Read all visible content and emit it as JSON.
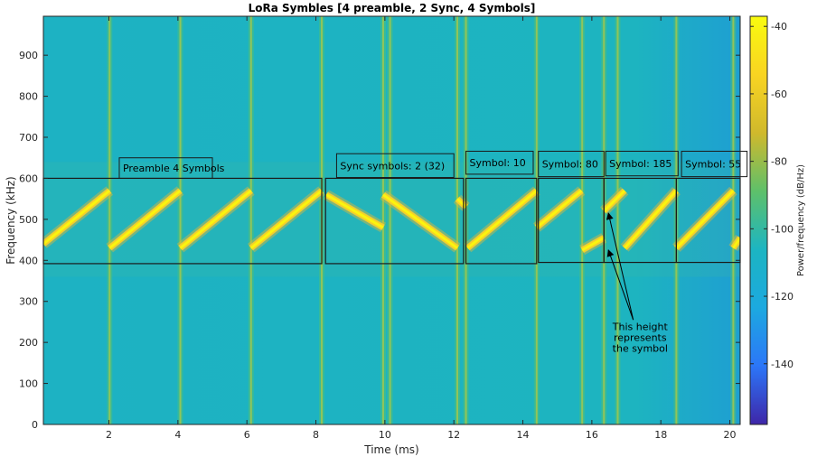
{
  "chart_data": {
    "type": "heatmap",
    "title": "LoRa Symbles [4 preamble, 2 Sync, 4 Symbols]",
    "xlabel": "Time (ms)",
    "ylabel": "Frequency (kHz)",
    "xlim": [
      0.1,
      20.3
    ],
    "ylim": [
      0,
      995
    ],
    "xticks": [
      2,
      4,
      6,
      8,
      10,
      12,
      14,
      16,
      18,
      20
    ],
    "yticks": [
      0,
      100,
      200,
      300,
      400,
      500,
      600,
      700,
      800,
      900
    ],
    "colorbar": {
      "label": "Power/frequency (dB/Hz)",
      "range": [
        -158,
        -37
      ],
      "ticks": [
        -40,
        -60,
        -80,
        -100,
        -120,
        -140
      ],
      "colors": [
        "#3e26a8",
        "#2c76f8",
        "#1ca9e0",
        "#1cb5c2",
        "#5ec06a",
        "#d0b92c",
        "#f9d422",
        "#f9fb0e"
      ]
    },
    "background_color": "#1db3c2",
    "chirp_segments": [
      {
        "t0": 0.1,
        "t1": 2.02,
        "f0": 440,
        "f1": 570
      },
      {
        "t0": 2.02,
        "t1": 4.07,
        "f0": 430,
        "f1": 570
      },
      {
        "t0": 4.07,
        "t1": 6.12,
        "f0": 430,
        "f1": 570
      },
      {
        "t0": 6.12,
        "t1": 8.17,
        "f0": 430,
        "f1": 570
      },
      {
        "t0": 8.3,
        "t1": 9.95,
        "f0": 560,
        "f1": 480
      },
      {
        "t0": 9.95,
        "t1": 12.1,
        "f0": 560,
        "f1": 430
      },
      {
        "t0": 12.1,
        "t1": 12.35,
        "f0": 550,
        "f1": 530
      },
      {
        "t0": 12.4,
        "t1": 14.4,
        "f0": 430,
        "f1": 570
      },
      {
        "t0": 14.4,
        "t1": 15.7,
        "f0": 480,
        "f1": 570
      },
      {
        "t0": 15.72,
        "t1": 16.35,
        "f0": 425,
        "f1": 455
      },
      {
        "t0": 16.35,
        "t1": 16.95,
        "f0": 520,
        "f1": 570
      },
      {
        "t0": 16.95,
        "t1": 18.45,
        "f0": 430,
        "f1": 570
      },
      {
        "t0": 18.45,
        "t1": 20.1,
        "f0": 430,
        "f1": 570
      },
      {
        "t0": 20.1,
        "t1": 20.3,
        "f0": 430,
        "f1": 455
      }
    ],
    "vertical_bursts": [
      2.02,
      4.07,
      6.12,
      8.17,
      9.95,
      10.15,
      12.1,
      12.35,
      14.4,
      15.72,
      16.35,
      16.75,
      18.45,
      20.1
    ],
    "annotation_boxes": [
      {
        "name": "preamble-box",
        "t0": 0.1,
        "t1": 8.17,
        "f0": 392,
        "f1": 600
      },
      {
        "name": "sync-box",
        "t0": 8.28,
        "t1": 12.28,
        "f0": 392,
        "f1": 600
      },
      {
        "name": "symbol-10-box",
        "t0": 12.35,
        "t1": 14.4,
        "f0": 392,
        "f1": 600
      },
      {
        "name": "symbol-80-box",
        "t0": 14.45,
        "t1": 16.35,
        "f0": 395,
        "f1": 600
      },
      {
        "name": "symbol-185-box",
        "t0": 16.35,
        "t1": 18.45,
        "f0": 395,
        "f1": 600
      },
      {
        "name": "symbol-55-box",
        "t0": 18.45,
        "t1": 20.3,
        "f0": 395,
        "f1": 600
      }
    ],
    "label_boxes": [
      {
        "name": "preamble-label",
        "text": "Preamble 4 Symbols",
        "t0": 2.3,
        "t1": 5.0,
        "f0": 600,
        "f1": 650
      },
      {
        "name": "sync-label",
        "text": "Sync symbols: 2 (32)",
        "t0": 8.6,
        "t1": 12.0,
        "f0": 602,
        "f1": 660
      },
      {
        "name": "symbol-10-label",
        "text": "Symbol: 10",
        "t0": 12.35,
        "t1": 14.3,
        "f0": 610,
        "f1": 666
      },
      {
        "name": "symbol-80-label",
        "text": "Symbol: 80",
        "t0": 14.45,
        "t1": 16.35,
        "f0": 604,
        "f1": 666
      },
      {
        "name": "symbol-185-label",
        "text": "Symbol: 185",
        "t0": 16.4,
        "t1": 18.5,
        "f0": 606,
        "f1": 666
      },
      {
        "name": "symbol-55-label",
        "text": "Symbol: 55",
        "t0": 18.6,
        "t1": 20.5,
        "f0": 604,
        "f1": 666
      }
    ],
    "annotation_note": {
      "lines": [
        "This height",
        "represents",
        "the symbol"
      ],
      "t": 17.4,
      "f": 230,
      "arrows": [
        {
          "from_t": 17.2,
          "from_f": 255,
          "to_t": 16.48,
          "to_f": 515
        },
        {
          "from_t": 17.2,
          "from_f": 255,
          "to_t": 16.48,
          "to_f": 425
        }
      ]
    }
  }
}
